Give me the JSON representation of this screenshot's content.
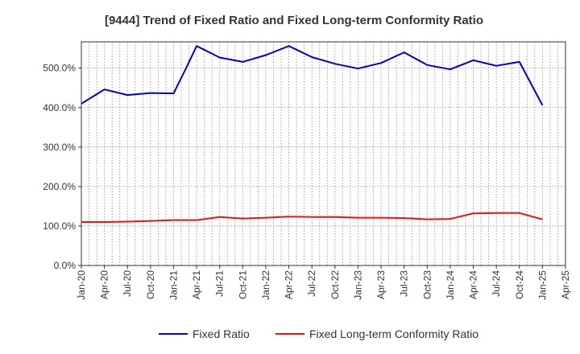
{
  "chart_data": {
    "type": "line",
    "title": "[9444]  Trend of Fixed Ratio and Fixed Long-term Conformity Ratio",
    "xlabel": "",
    "ylabel": "",
    "ylim": [
      0,
      566.7
    ],
    "y_ticks": [
      "0.0%",
      "100.0%",
      "200.0%",
      "300.0%",
      "400.0%",
      "500.0%"
    ],
    "y_tick_values": [
      0,
      100,
      200,
      300,
      400,
      500
    ],
    "x_tick_labels": [
      "Jan-20",
      "Apr-20",
      "Jul-20",
      "Oct-20",
      "Jan-21",
      "Apr-21",
      "Jul-21",
      "Oct-21",
      "Jan-22",
      "Apr-22",
      "Jul-22",
      "Oct-22",
      "Jan-23",
      "Apr-23",
      "Jul-23",
      "Oct-23",
      "Jan-24",
      "Apr-24",
      "Jul-24",
      "Oct-24",
      "Jan-25",
      "Apr-25"
    ],
    "x": [
      "Jan-20",
      "Apr-20",
      "Jul-20",
      "Oct-20",
      "Jan-21",
      "Apr-21",
      "Jul-21",
      "Oct-21",
      "Jan-22",
      "Apr-22",
      "Jul-22",
      "Oct-22",
      "Jan-23",
      "Apr-23",
      "Jul-23",
      "Oct-23",
      "Jan-24",
      "Apr-24",
      "Jul-24",
      "Oct-24",
      "Jan-25"
    ],
    "grid": true,
    "legend_position": "bottom",
    "series": [
      {
        "name": "Fixed Ratio",
        "color": "#0000cc",
        "values": [
          410,
          446,
          432,
          437,
          436,
          556,
          527,
          516,
          533,
          556,
          528,
          511,
          499,
          513,
          540,
          508,
          497,
          520,
          506,
          516,
          406
        ],
        "extra_points": [
          {
            "x_index": 4.5,
            "value": 495
          }
        ]
      },
      {
        "name": "Fixed Long-term Conformity Ratio",
        "color": "#ee1111",
        "values": [
          110,
          110,
          111,
          113,
          115,
          115,
          123,
          119,
          121,
          124,
          123,
          123,
          121,
          121,
          120,
          117,
          118,
          132,
          133,
          133,
          117
        ]
      }
    ]
  }
}
